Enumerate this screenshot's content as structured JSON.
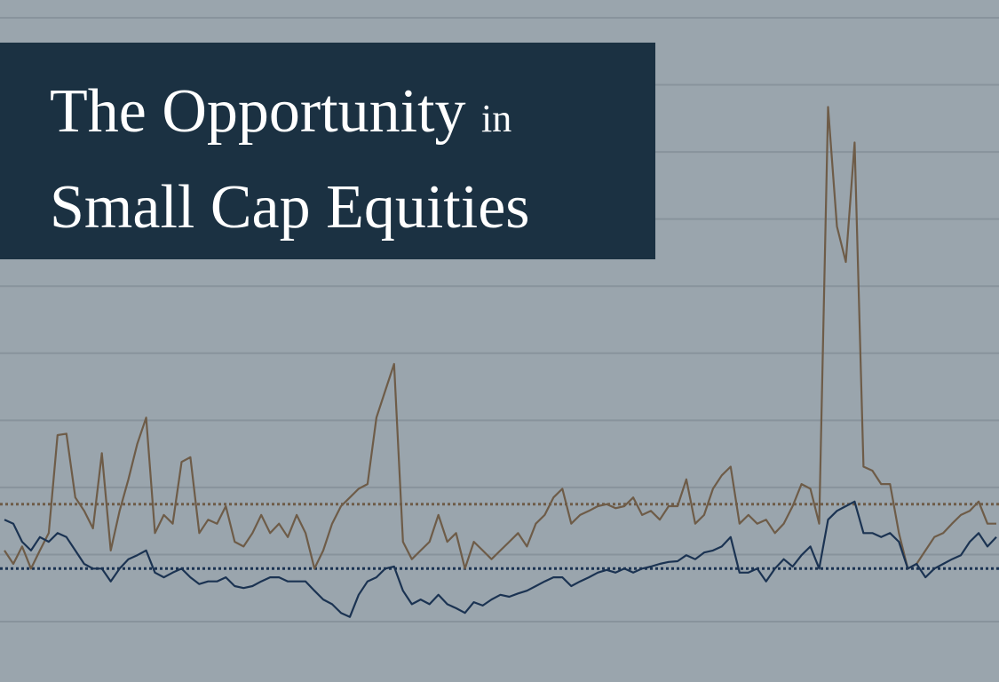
{
  "chart_data": {
    "type": "line",
    "title": [
      "The Opportunity",
      "in",
      "Small Cap Equities"
    ],
    "ylim": [
      0,
      9
    ],
    "yticks": [
      0,
      1,
      2,
      3,
      4,
      5,
      6,
      7,
      8,
      9
    ],
    "grid": true,
    "series": [
      {
        "color": "#6e5c48",
        "values": [
          1.06,
          0.86,
          1.12,
          0.79,
          1.06,
          1.32,
          2.78,
          2.8,
          1.85,
          1.65,
          1.39,
          2.51,
          1.06,
          1.65,
          2.12,
          2.65,
          3.04,
          1.32,
          1.59,
          1.46,
          2.38,
          2.45,
          1.32,
          1.52,
          1.46,
          1.72,
          1.19,
          1.12,
          1.32,
          1.59,
          1.32,
          1.46,
          1.26,
          1.59,
          1.32,
          0.79,
          1.06,
          1.46,
          1.72,
          1.85,
          1.98,
          2.05,
          3.04,
          3.44,
          3.84,
          1.19,
          0.93,
          1.06,
          1.19,
          1.59,
          1.19,
          1.32,
          0.79,
          1.19,
          1.06,
          0.93,
          1.06,
          1.19,
          1.32,
          1.12,
          1.46,
          1.59,
          1.85,
          1.98,
          1.46,
          1.59,
          1.65,
          1.72,
          1.75,
          1.69,
          1.72,
          1.85,
          1.59,
          1.65,
          1.52,
          1.72,
          1.72,
          2.12,
          1.46,
          1.59,
          1.98,
          2.18,
          2.31,
          1.46,
          1.59,
          1.46,
          1.52,
          1.32,
          1.46,
          1.72,
          2.05,
          1.98,
          1.46,
          7.67,
          5.89,
          5.36,
          7.14,
          2.31,
          2.25,
          2.05,
          2.05,
          1.32,
          0.79,
          0.86,
          1.06,
          1.26,
          1.32,
          1.46,
          1.59,
          1.65,
          1.79,
          1.46,
          1.46
        ]
      },
      {
        "color": "#1b3352",
        "values": [
          1.52,
          1.46,
          1.19,
          1.06,
          1.26,
          1.19,
          1.32,
          1.26,
          1.06,
          0.86,
          0.79,
          0.79,
          0.6,
          0.79,
          0.93,
          0.99,
          1.06,
          0.73,
          0.66,
          0.73,
          0.79,
          0.66,
          0.56,
          0.6,
          0.6,
          0.66,
          0.53,
          0.5,
          0.53,
          0.6,
          0.66,
          0.66,
          0.6,
          0.6,
          0.6,
          0.46,
          0.33,
          0.26,
          0.13,
          0.07,
          0.4,
          0.6,
          0.66,
          0.79,
          0.82,
          0.46,
          0.26,
          0.33,
          0.26,
          0.4,
          0.26,
          0.2,
          0.13,
          0.29,
          0.24,
          0.33,
          0.4,
          0.37,
          0.42,
          0.46,
          0.53,
          0.6,
          0.66,
          0.66,
          0.53,
          0.6,
          0.66,
          0.73,
          0.77,
          0.73,
          0.79,
          0.73,
          0.79,
          0.82,
          0.86,
          0.89,
          0.9,
          0.99,
          0.93,
          1.03,
          1.06,
          1.12,
          1.26,
          0.73,
          0.73,
          0.79,
          0.6,
          0.79,
          0.93,
          0.82,
          0.99,
          1.12,
          0.79,
          1.52,
          1.65,
          1.72,
          1.79,
          1.32,
          1.32,
          1.26,
          1.32,
          1.19,
          0.79,
          0.86,
          0.66,
          0.79,
          0.86,
          0.93,
          0.99,
          1.19,
          1.32,
          1.12,
          1.26
        ]
      }
    ],
    "reference_lines": [
      {
        "value": 1.75,
        "color": "#6e5c48",
        "style": "dotted"
      },
      {
        "value": 0.79,
        "color": "#1b3352",
        "style": "dotted"
      }
    ]
  }
}
